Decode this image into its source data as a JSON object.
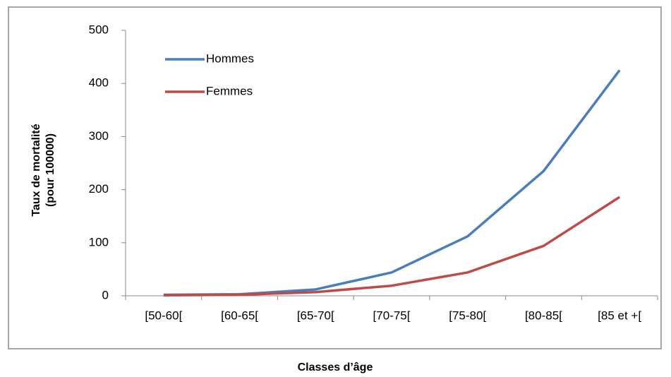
{
  "chart_data": {
    "type": "line",
    "categories": [
      "[50-60[",
      "[60-65[",
      "[65-70[",
      "[70-75[",
      "[75-80[",
      "[80-85[",
      "[85 et +["
    ],
    "series": [
      {
        "name": "Hommes",
        "color": "#4a7ebb",
        "values": [
          2,
          3,
          12,
          44,
          112,
          235,
          425
        ]
      },
      {
        "name": "Femmes",
        "color": "#be4b48",
        "values": [
          1,
          2,
          7,
          19,
          44,
          94,
          186
        ]
      }
    ],
    "ylim": [
      0,
      500
    ],
    "yticks": [
      0,
      100,
      200,
      300,
      400,
      500
    ],
    "y_label": [
      "Taux de mortalité",
      "(pour 100000)"
    ],
    "x_label": "Classes d’âge",
    "legend": "top-left"
  }
}
